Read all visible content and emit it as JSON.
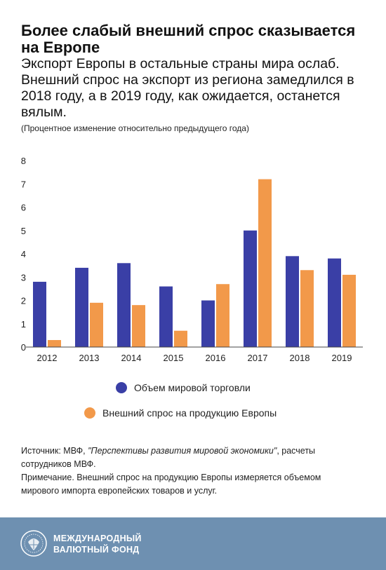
{
  "title": "Более слабый внешний спрос сказывается на Европе",
  "subtitle": "Экспорт Европы в остальные страны мира ослаб. Внешний спрос на экспорт из региона замедлился в 2018 году, а в 2019 году, как ожидается, останется вялым.",
  "units_note": "(Процентное изменение относительно предыдущего года)",
  "chart_data": {
    "type": "bar",
    "categories": [
      "2012",
      "2013",
      "2014",
      "2015",
      "2016",
      "2017",
      "2018",
      "2019"
    ],
    "series": [
      {
        "name": "Объем мировой торговли",
        "color": "#3a3fa6",
        "values": [
          2.8,
          3.4,
          3.6,
          2.6,
          2.0,
          5.0,
          3.9,
          3.8
        ]
      },
      {
        "name": "Внешний спрос на продукцию Европы",
        "color": "#f2994a",
        "values": [
          0.3,
          1.9,
          1.8,
          0.7,
          2.7,
          7.2,
          3.3,
          3.1
        ]
      }
    ],
    "y_ticks": [
      "0",
      "1",
      "2",
      "3",
      "4",
      "5",
      "6",
      "7",
      "8"
    ],
    "ylim": [
      0,
      8
    ],
    "grid": false,
    "legend_position": "bottom"
  },
  "source": {
    "prefix": "Источник: МВФ, ",
    "publication": "\"Перспективы развития мировой экономики\"",
    "suffix": ", расчеты сотрудников МВФ.",
    "note": "Примечание. Внешний спрос на продукцию Европы измеряется объемом мирового импорта европейских товаров и услуг."
  },
  "footer": {
    "logo_line1": "МЕЖДУНАРОДНЫЙ",
    "logo_line2": "ВАЛЮТНЫЙ ФОНД",
    "background": "#6e90b1",
    "logo_icon": "imf-seal-icon"
  }
}
